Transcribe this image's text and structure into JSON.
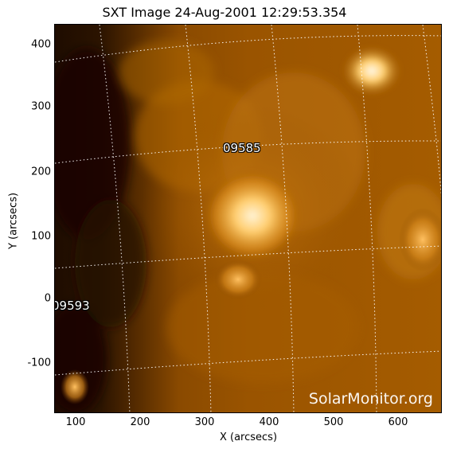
{
  "figure": {
    "title": "SXT Image 24-Aug-2001 12:29:53.354",
    "xlabel": "X (arcsecs)",
    "ylabel": "Y (arcsecs)",
    "xticks": [
      "100",
      "200",
      "300",
      "400",
      "500",
      "600"
    ],
    "yticks": [
      "400",
      "300",
      "200",
      "100",
      "0",
      "-100"
    ],
    "active_regions": [
      {
        "label": "09585"
      },
      {
        "label": "09593"
      }
    ],
    "watermark": "SolarMonitor.org",
    "colors": {
      "background": "#ffffff",
      "image_dark": "#1a0a00",
      "image_mid": "#a05a00",
      "image_bright": "#ffd98a",
      "grid": "#ffffff"
    }
  }
}
